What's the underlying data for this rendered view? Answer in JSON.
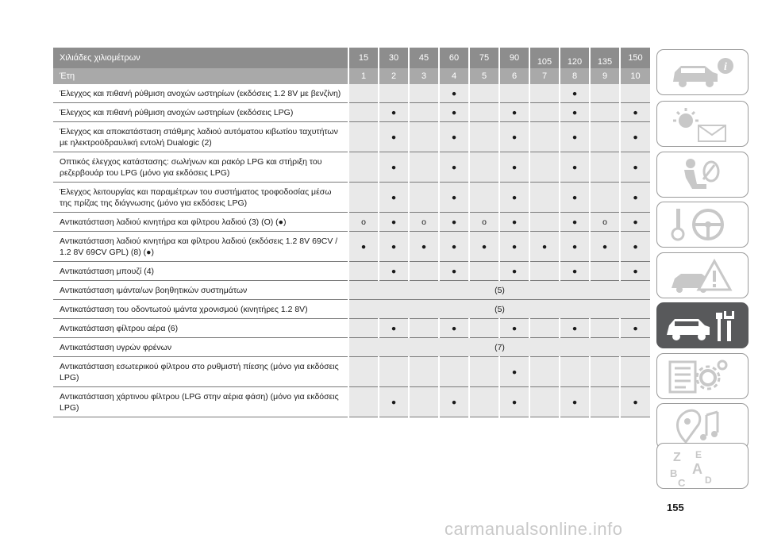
{
  "header": {
    "label": "Χιλιάδες χιλιομέτρων",
    "values": [
      "15",
      "30",
      "45",
      "60",
      "75",
      "90",
      "105",
      "120",
      "135",
      "150"
    ]
  },
  "subheader": {
    "label": "Έτη",
    "values": [
      "1",
      "2",
      "3",
      "4",
      "5",
      "6",
      "7",
      "8",
      "9",
      "10"
    ]
  },
  "rows": [
    {
      "desc": "Έλεγχος και πιθανή ρύθμιση ανοχών ωστηρίων (εκδόσεις 1.2 8V με βενζίνη)",
      "cells": [
        "",
        "",
        "",
        "●",
        "",
        "",
        "",
        "●",
        "",
        ""
      ]
    },
    {
      "desc": "Έλεγχος και πιθανή ρύθμιση ανοχών ωστηρίων (εκδόσεις LPG)",
      "cells": [
        "",
        "●",
        "",
        "●",
        "",
        "●",
        "",
        "●",
        "",
        "●"
      ]
    },
    {
      "desc": "Έλεγχος και αποκατάσταση στάθμης λαδιού αυτόματου κιβωτίου ταχυτήτων με ηλεκτροϋδραυλική εντολή Dualogic (2)",
      "cells": [
        "",
        "●",
        "",
        "●",
        "",
        "●",
        "",
        "●",
        "",
        "●"
      ]
    },
    {
      "desc": "Οπτικός έλεγχος κατάστασης: σωλήνων και ρακόρ LPG και στήριξη του ρεζερβουάρ του LPG (μόνο για εκδόσεις LPG)",
      "cells": [
        "",
        "●",
        "",
        "●",
        "",
        "●",
        "",
        "●",
        "",
        "●"
      ]
    },
    {
      "desc": "Έλεγχος λειτουργίας και παραμέτρων του συστήματος τροφοδοσίας μέσω της πρίζας της διάγνωσης (μόνο για εκδόσεις LPG)",
      "cells": [
        "",
        "●",
        "",
        "●",
        "",
        "●",
        "",
        "●",
        "",
        "●"
      ]
    },
    {
      "desc": "Αντικατάσταση λαδιού κινητήρα και φίλτρου λαδιού (3) (O) (●)",
      "cells": [
        "o",
        "●",
        "o",
        "●",
        "o",
        "●",
        "",
        "●",
        "o",
        "●"
      ]
    },
    {
      "desc": "Αντικατάσταση λαδιού κινητήρα και φίλτρου λαδιού (εκδόσεις 1.2 8V 69CV / 1.2 8V 69CV GPL) (8) (●)",
      "cells": [
        "●",
        "●",
        "●",
        "●",
        "●",
        "●",
        "●",
        "●",
        "●",
        "●"
      ]
    },
    {
      "desc": "Αντικατάσταση μπουζί (4)",
      "cells": [
        "",
        "●",
        "",
        "●",
        "",
        "●",
        "",
        "●",
        "",
        "●"
      ]
    },
    {
      "desc": "Αντικατάσταση ιμάντα/ων βοηθητικών συστημάτων",
      "span": "(5)"
    },
    {
      "desc": "Αντικατάσταση του οδοντωτού ιμάντα χρονισμού (κινητήρες 1.2 8V)",
      "span": "(5)"
    },
    {
      "desc": "Αντικατάσταση φίλτρου αέρα (6)",
      "cells": [
        "",
        "●",
        "",
        "●",
        "",
        "●",
        "",
        "●",
        "",
        "●"
      ]
    },
    {
      "desc": "Αντικατάσταση υγρών φρένων",
      "span": "(7)"
    },
    {
      "desc": "Αντικατάσταση εσωτερικού φίλτρου στο ρυθμιστή πίεσης (μόνο για εκδόσεις LPG)",
      "cells": [
        "",
        "",
        "",
        "",
        "",
        "●",
        "",
        "",
        "",
        ""
      ]
    },
    {
      "desc": "Αντικατάσταση χάρτινου φίλτρου (LPG στην αέρια φάση) (μόνο για εκδόσεις LPG)",
      "cells": [
        "",
        "●",
        "",
        "●",
        "",
        "●",
        "",
        "●",
        "",
        "●"
      ]
    }
  ],
  "sidebar": {
    "icons": [
      "car-info-icon",
      "warning-lights-message-icon",
      "seat-airbag-icon",
      "key-steering-icon",
      "emergency-triangle-icon",
      "car-maintenance-wrench-icon",
      "technical-specs-gear-icon",
      "multimedia-music-icon",
      "alphabetical-index-icon"
    ],
    "active_index": 5,
    "index_letters": [
      "Z",
      "E",
      "B",
      "A",
      "C",
      "D"
    ]
  },
  "page_number": "155",
  "watermark": "carmanualsonline.info",
  "colors": {
    "header": "#8d8d8d",
    "subheader": "#a9a9a9",
    "cell": "#e9e9e9",
    "active_tab": "#58595b"
  }
}
